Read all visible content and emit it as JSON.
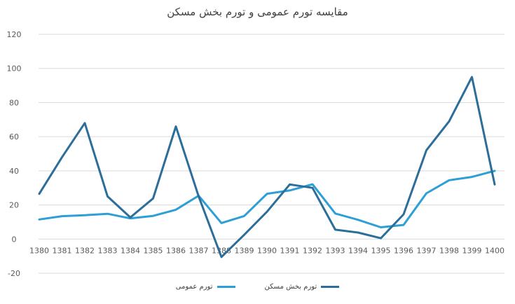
{
  "chart_data": {
    "type": "line",
    "title": "مقایسه تورم عمومی و تورم بخش مسکن",
    "xlabel": "",
    "ylabel": "",
    "categories": [
      "1380",
      "1381",
      "1382",
      "1383",
      "1384",
      "1385",
      "1386",
      "1387",
      "1388",
      "1389",
      "1390",
      "1391",
      "1392",
      "1393",
      "1394",
      "1395",
      "1396",
      "1397",
      "1398",
      "1399",
      "1400"
    ],
    "ylim": [
      -20,
      120
    ],
    "yticks": [
      -20,
      0,
      20,
      40,
      60,
      80,
      100,
      120
    ],
    "grid": true,
    "legend_position": "bottom",
    "series": [
      {
        "name": "تورم عمومی",
        "color": "#2e9fd6",
        "values": [
          11.5,
          13.4,
          14,
          14.8,
          12.1,
          13.6,
          17.2,
          25.4,
          9.4,
          13.5,
          26.5,
          28.5,
          32.1,
          15,
          11.3,
          6.9,
          8.3,
          26.8,
          34.5,
          36.4,
          40
        ]
      },
      {
        "name": "تورم بخش مسکن",
        "color": "#2c6e9a",
        "values": [
          26.5,
          48,
          68,
          25,
          12.7,
          23.8,
          66,
          25,
          -10.5,
          2.5,
          16,
          32,
          30,
          5.5,
          3.8,
          0.5,
          14.5,
          52,
          69,
          95,
          32
        ]
      }
    ]
  }
}
